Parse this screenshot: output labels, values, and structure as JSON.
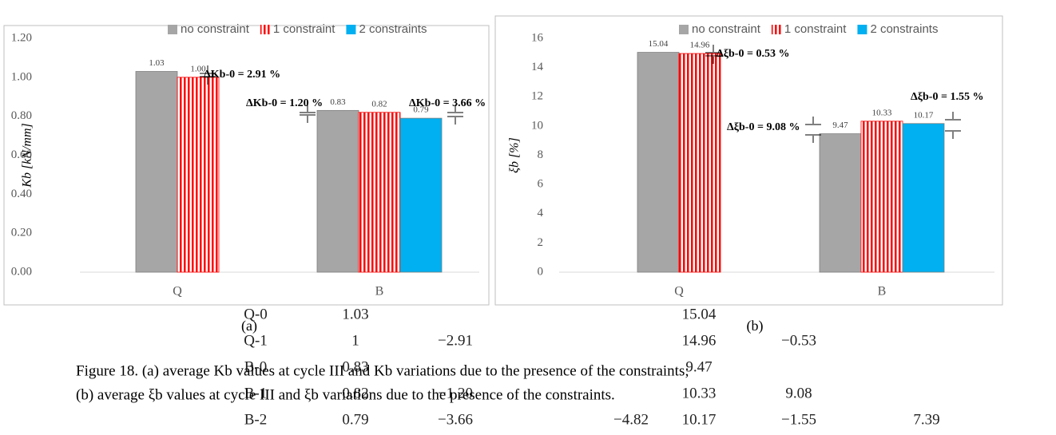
{
  "chart_data": [
    {
      "type": "bar",
      "ylabel": "Kb [kN/mm]",
      "categories": [
        "Q",
        "B"
      ],
      "series": [
        {
          "name": "no constraint",
          "color": "#a6a6a6",
          "values": [
            1.03,
            0.83
          ],
          "value_labels": [
            "1.03",
            "0.83"
          ]
        },
        {
          "name": "1 constraint",
          "color": "#ff0000",
          "hatch": true,
          "values": [
            1.0,
            0.82
          ],
          "value_labels": [
            "1.00",
            "0.82"
          ]
        },
        {
          "name": "2 constraints",
          "color": "#00b0f0",
          "values": [
            null,
            0.79
          ],
          "value_labels": [
            null,
            "0.79"
          ]
        }
      ],
      "ylim": [
        0,
        1.2
      ],
      "yticks": [
        {
          "value": 0,
          "label": "0.00"
        },
        {
          "value": 0.2,
          "label": "0.20"
        },
        {
          "value": 0.4,
          "label": "0.40"
        },
        {
          "value": 0.6,
          "label": "0.60"
        },
        {
          "value": 0.8,
          "label": "0.80"
        },
        {
          "value": 1.0,
          "label": "1.00"
        },
        {
          "value": 1.2,
          "label": "1.20"
        }
      ],
      "annotations": [
        "ΔKb-0 = 2.91 %",
        "ΔKb-0 = 1.20 %",
        "ΔKb-0 = 3.66 %"
      ],
      "legend": "top"
    },
    {
      "type": "bar",
      "ylabel": "ξb [%]",
      "categories": [
        "Q",
        "B"
      ],
      "series": [
        {
          "name": "no constraint",
          "color": "#a6a6a6",
          "values": [
            15.04,
            9.47
          ]
        },
        {
          "name": "1 constraint",
          "color": "#ff0000",
          "hatch": true,
          "values": [
            14.96,
            10.33
          ]
        },
        {
          "name": "2 constraints",
          "color": "#00b0f0",
          "values": [
            null,
            10.17
          ]
        }
      ],
      "ylim": [
        0,
        16
      ],
      "yticks": [
        0,
        2,
        4,
        6,
        8,
        10,
        12,
        14,
        16
      ],
      "annotations": [
        "Δξb-0 = 0.53 %",
        "Δξb-0 = 9.08 %",
        "Δξb-0 = 1.55 %"
      ],
      "legend": "top"
    }
  ],
  "document": {
    "panel_labels": [
      "(a)",
      "(b)"
    ],
    "caption": [
      "Figure 18. (a) average Kb values at cycle III and Kb variations due to the presence of the constraints;",
      "(b) average ξb values at cycle III and ξb variations due to the presence of the constraints."
    ],
    "table": {
      "rows": [
        [
          "Q-0",
          "1.03",
          "",
          "",
          "15.04",
          "",
          ""
        ],
        [
          "Q-1",
          "1",
          "−2.91",
          "",
          "14.96",
          "−0.53",
          ""
        ],
        [
          "B-0",
          "0.83",
          "",
          "",
          "9.47",
          "",
          ""
        ],
        [
          "B-1",
          "0.82",
          "−1.20",
          "",
          "10.33",
          "9.08",
          ""
        ],
        [
          "B-2",
          "0.79",
          "−3.66",
          "−4.82",
          "10.17",
          "−1.55",
          "7.39"
        ]
      ]
    }
  }
}
